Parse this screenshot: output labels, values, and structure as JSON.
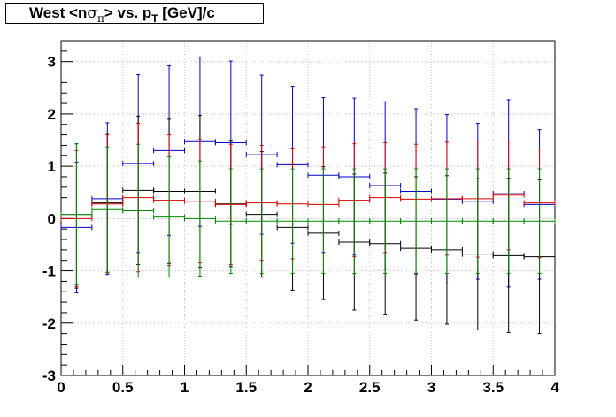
{
  "title": {
    "before": "West <n",
    "sigma": "σ",
    "pi": "π",
    "mid": "> vs. p",
    "sub": "T",
    "after": " [GeV]/c"
  },
  "chart_data": {
    "type": "scatter",
    "xlim": [
      0,
      4
    ],
    "ylim": [
      -3,
      3.4
    ],
    "x_ticks": [
      "0",
      "0.5",
      "1",
      "1.5",
      "2",
      "2.5",
      "3",
      "3.5",
      "4"
    ],
    "y_ticks": [
      "-3",
      "-2",
      "-1",
      "0",
      "1",
      "2",
      "3"
    ],
    "grid": true,
    "colors": {
      "blue": "#0000cc",
      "black": "#000000",
      "red": "#dd0000",
      "green": "#008800"
    },
    "series": [
      {
        "color": "blue",
        "points": [
          [
            0.125,
            -0.17,
            0.25,
            1.25
          ],
          [
            0.375,
            0.38,
            0.25,
            1.45
          ],
          [
            0.625,
            1.05,
            0.25,
            1.7
          ],
          [
            0.875,
            1.3,
            0.25,
            1.62
          ],
          [
            1.125,
            1.47,
            0.25,
            1.62
          ],
          [
            1.375,
            1.45,
            0.25,
            1.56
          ],
          [
            1.625,
            1.22,
            0.25,
            1.52
          ],
          [
            1.875,
            1.03,
            0.25,
            1.5
          ],
          [
            2.125,
            0.83,
            0.25,
            1.48
          ],
          [
            2.375,
            0.8,
            0.25,
            1.5
          ],
          [
            2.625,
            0.63,
            0.25,
            1.6
          ],
          [
            2.875,
            0.52,
            0.25,
            1.58
          ],
          [
            3.125,
            0.37,
            0.25,
            1.62
          ],
          [
            3.375,
            0.33,
            0.25,
            1.49
          ],
          [
            3.625,
            0.48,
            0.25,
            1.79
          ],
          [
            3.875,
            0.27,
            0.25,
            1.43
          ]
        ]
      },
      {
        "color": "black",
        "points": [
          [
            0.125,
            0.05,
            0.25,
            1.38
          ],
          [
            0.375,
            0.3,
            0.25,
            1.33
          ],
          [
            0.625,
            0.54,
            0.25,
            1.42
          ],
          [
            0.875,
            0.52,
            0.25,
            1.38
          ],
          [
            1.125,
            0.52,
            0.25,
            1.45
          ],
          [
            1.375,
            0.28,
            0.25,
            1.2
          ],
          [
            1.625,
            0.08,
            0.25,
            1.2
          ],
          [
            1.875,
            -0.17,
            0.25,
            1.2
          ],
          [
            2.125,
            -0.28,
            0.25,
            1.27
          ],
          [
            2.375,
            -0.45,
            0.25,
            1.3
          ],
          [
            2.625,
            -0.48,
            0.25,
            1.35
          ],
          [
            2.875,
            -0.57,
            0.25,
            1.37
          ],
          [
            3.125,
            -0.6,
            0.25,
            1.42
          ],
          [
            3.375,
            -0.68,
            0.25,
            1.45
          ],
          [
            3.625,
            -0.71,
            0.25,
            1.47
          ],
          [
            3.875,
            -0.73,
            0.25,
            1.47
          ]
        ]
      },
      {
        "color": "red",
        "points": [
          [
            0.125,
            0.0,
            0.25,
            1.3
          ],
          [
            0.375,
            0.28,
            0.25,
            1.32
          ],
          [
            0.625,
            0.4,
            0.25,
            1.42
          ],
          [
            0.875,
            0.35,
            0.25,
            1.25
          ],
          [
            1.125,
            0.33,
            0.25,
            1.18
          ],
          [
            1.375,
            0.27,
            0.25,
            1.15
          ],
          [
            1.625,
            0.3,
            0.25,
            1.1
          ],
          [
            1.875,
            0.28,
            0.25,
            1.05
          ],
          [
            2.125,
            0.27,
            0.25,
            1.1
          ],
          [
            2.375,
            0.35,
            0.25,
            1.08
          ],
          [
            2.625,
            0.4,
            0.25,
            1.05
          ],
          [
            2.875,
            0.37,
            0.25,
            1.05
          ],
          [
            3.125,
            0.38,
            0.25,
            1.08
          ],
          [
            3.375,
            0.38,
            0.25,
            1.12
          ],
          [
            3.625,
            0.45,
            0.25,
            1.05
          ],
          [
            3.875,
            0.3,
            0.25,
            1.05
          ]
        ]
      },
      {
        "color": "green",
        "points": [
          [
            0.125,
            0.08,
            0.25,
            1.35
          ],
          [
            0.375,
            0.17,
            0.25,
            1.2
          ],
          [
            0.625,
            0.15,
            0.25,
            1.27
          ],
          [
            0.875,
            0.03,
            0.25,
            1.15
          ],
          [
            1.125,
            0.0,
            0.25,
            1.1
          ],
          [
            1.375,
            -0.05,
            0.25,
            1.0
          ],
          [
            1.625,
            -0.05,
            0.25,
            1.0
          ],
          [
            1.875,
            -0.05,
            0.25,
            1.0
          ],
          [
            2.125,
            -0.05,
            0.25,
            1.0
          ],
          [
            2.375,
            -0.05,
            0.25,
            1.0
          ],
          [
            2.625,
            -0.05,
            0.25,
            1.0
          ],
          [
            2.875,
            -0.05,
            0.25,
            1.0
          ],
          [
            3.125,
            -0.05,
            0.25,
            1.0
          ],
          [
            3.375,
            -0.05,
            0.25,
            1.0
          ],
          [
            3.625,
            -0.05,
            0.25,
            1.0
          ],
          [
            3.875,
            -0.05,
            0.25,
            1.0
          ]
        ]
      }
    ]
  }
}
